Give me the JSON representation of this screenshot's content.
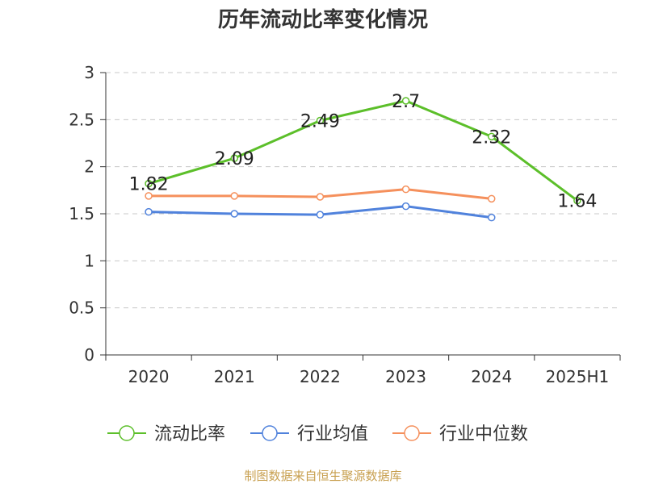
{
  "chart_data": {
    "type": "line",
    "title": "历年流动比率变化情况",
    "categories": [
      "2020",
      "2021",
      "2022",
      "2023",
      "2024",
      "2025H1"
    ],
    "ylim": [
      0,
      3
    ],
    "yticks": [
      0,
      0.5,
      1,
      1.5,
      2,
      2.5,
      3
    ],
    "ytick_labels": [
      "0",
      "0.5",
      "1",
      "1.5",
      "2",
      "2.5",
      "3"
    ],
    "grid": true,
    "legend_position": "bottom",
    "series": [
      {
        "name": "流动比率",
        "color": "#5cbf2a",
        "values": [
          1.82,
          2.09,
          2.49,
          2.7,
          2.32,
          1.64
        ],
        "labels": [
          "1.82",
          "2.09",
          "2.49",
          "2.7",
          "2.32",
          "1.64"
        ]
      },
      {
        "name": "行业均值",
        "color": "#5082dc",
        "values": [
          1.52,
          1.5,
          1.49,
          1.58,
          1.46,
          null
        ],
        "labels": []
      },
      {
        "name": "行业中位数",
        "color": "#f5905c",
        "values": [
          1.69,
          1.69,
          1.68,
          1.76,
          1.66,
          null
        ],
        "labels": []
      }
    ]
  },
  "source_note": "制图数据来自恒生聚源数据库"
}
